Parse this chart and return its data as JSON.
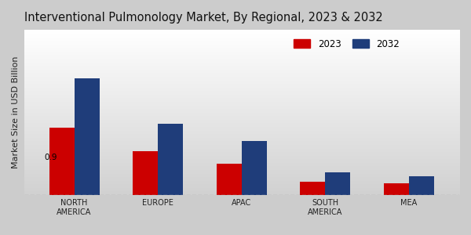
{
  "title": "Interventional Pulmonology Market, By Regional, 2023 & 2032",
  "ylabel": "Market Size in USD Billion",
  "categories": [
    "NORTH\nAMERICA",
    "EUROPE",
    "APAC",
    "SOUTH\nAMERICA",
    "MEA"
  ],
  "values_2023": [
    0.9,
    0.58,
    0.42,
    0.18,
    0.15
  ],
  "values_2032": [
    1.55,
    0.95,
    0.72,
    0.3,
    0.25
  ],
  "color_2023": "#cc0000",
  "color_2032": "#1f3d7a",
  "bar_width": 0.3,
  "annotation_text": "0.9",
  "background_color_top": "#ffffff",
  "background_color_bottom": "#d0d0d0",
  "title_fontsize": 10.5,
  "legend_labels": [
    "2023",
    "2032"
  ],
  "ylim": [
    0,
    2.2
  ],
  "grid_linestyle": "--",
  "grid_color": "#aaaaaa",
  "bottom_bar_color": "#cc0000",
  "xlabel_fontsize": 7,
  "ylabel_fontsize": 8
}
